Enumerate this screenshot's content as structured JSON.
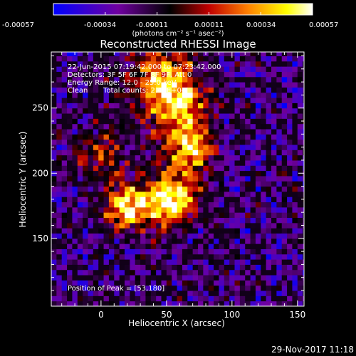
{
  "colorbar": {
    "ticks": [
      "-0.00057",
      "-0.00034",
      "-0.00011",
      "0.00011",
      "0.00034",
      "0.00057"
    ],
    "units_text": "(photons cm⁻² s⁻¹ asec⁻²)"
  },
  "title": "Reconstructed RHESSI Image",
  "annotations": {
    "time_range": "22-Jun-2015 07:19:42.000 to 07:23:42.000",
    "detectors": "Detectors: 3F 5F 6F 7F 8F 9F, Att 0",
    "energy": "Energy Range: 12.0 - 25.0 keV",
    "clean_label": "Clean",
    "total_counts": "Total counts: 2.44E+04",
    "peak": "Position of Peak = [53,180]"
  },
  "footer": {
    "date": "29-Nov-2017 11:18"
  },
  "chart_data": {
    "type": "heatmap",
    "title": "Reconstructed RHESSI Image",
    "xlabel": "Heliocentric X (arcsec)",
    "ylabel": "Heliocentric Y (arcsec)",
    "xlim": [
      -38,
      155
    ],
    "ylim": [
      98,
      293
    ],
    "x_ticks": [
      0,
      50,
      100,
      150
    ],
    "y_ticks": [
      150,
      200,
      250
    ],
    "value_range": [
      -0.00057,
      0.00057
    ],
    "colormap": [
      "#0000ff",
      "#7000a0",
      "#000000",
      "#c00000",
      "#ff8000",
      "#ffff00",
      "#ffffff"
    ],
    "sources": [
      {
        "x": 53,
        "y": 180,
        "level": 1.0,
        "sigma": 14
      },
      {
        "x": 20,
        "y": 175,
        "level": 0.85,
        "sigma": 12
      },
      {
        "x": 68,
        "y": 217,
        "level": 0.8,
        "sigma": 12
      },
      {
        "x": 60,
        "y": 250,
        "level": 0.7,
        "sigma": 16
      },
      {
        "x": 45,
        "y": 275,
        "level": 0.65,
        "sigma": 18
      },
      {
        "x": 0,
        "y": 215,
        "level": 0.45,
        "sigma": 14
      }
    ],
    "peak": [
      53,
      180
    ],
    "grid": false
  }
}
